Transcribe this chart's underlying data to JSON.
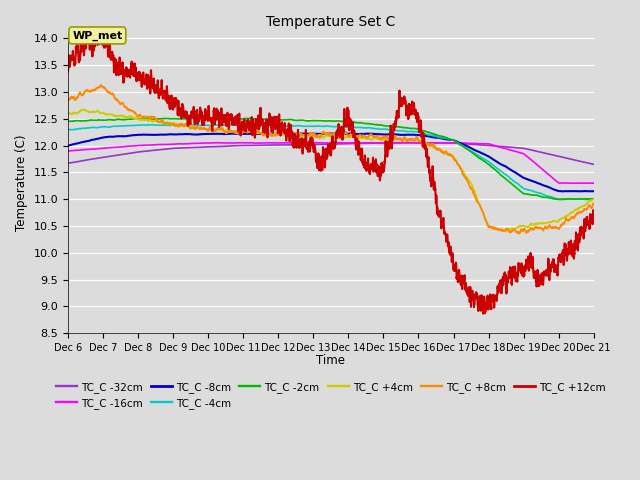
{
  "title": "Temperature Set C",
  "xlabel": "Time",
  "ylabel": "Temperature (C)",
  "ylim": [
    8.5,
    14.1
  ],
  "xlim": [
    0,
    15.5
  ],
  "x_tick_labels": [
    "Dec 6",
    "Dec 7",
    "Dec 8",
    "Dec 9",
    "Dec 10",
    "Dec 11",
    "Dec 12",
    "Dec 13",
    "Dec 14",
    "Dec 15",
    "Dec 16",
    "Dec 17",
    "Dec 18",
    "Dec 19",
    "Dec 20",
    "Dec 21"
  ],
  "annotation_text": "WP_met",
  "background_color": "#dcdcdc",
  "series": {
    "TC_C -32cm": {
      "color": "#9933cc",
      "lw": 1.2
    },
    "TC_C -16cm": {
      "color": "#ff00ff",
      "lw": 1.2
    },
    "TC_C -8cm": {
      "color": "#0000cc",
      "lw": 1.5
    },
    "TC_C -4cm": {
      "color": "#00cccc",
      "lw": 1.2
    },
    "TC_C -2cm": {
      "color": "#00bb00",
      "lw": 1.2
    },
    "TC_C +4cm": {
      "color": "#cccc00",
      "lw": 1.2
    },
    "TC_C +8cm": {
      "color": "#ff8800",
      "lw": 1.2
    },
    "TC_C +12cm": {
      "color": "#cc0000",
      "lw": 1.5
    }
  },
  "legend_order": [
    "TC_C -32cm",
    "TC_C -16cm",
    "TC_C -8cm",
    "TC_C -4cm",
    "TC_C -2cm",
    "TC_C +4cm",
    "TC_C +8cm",
    "TC_C +12cm"
  ]
}
